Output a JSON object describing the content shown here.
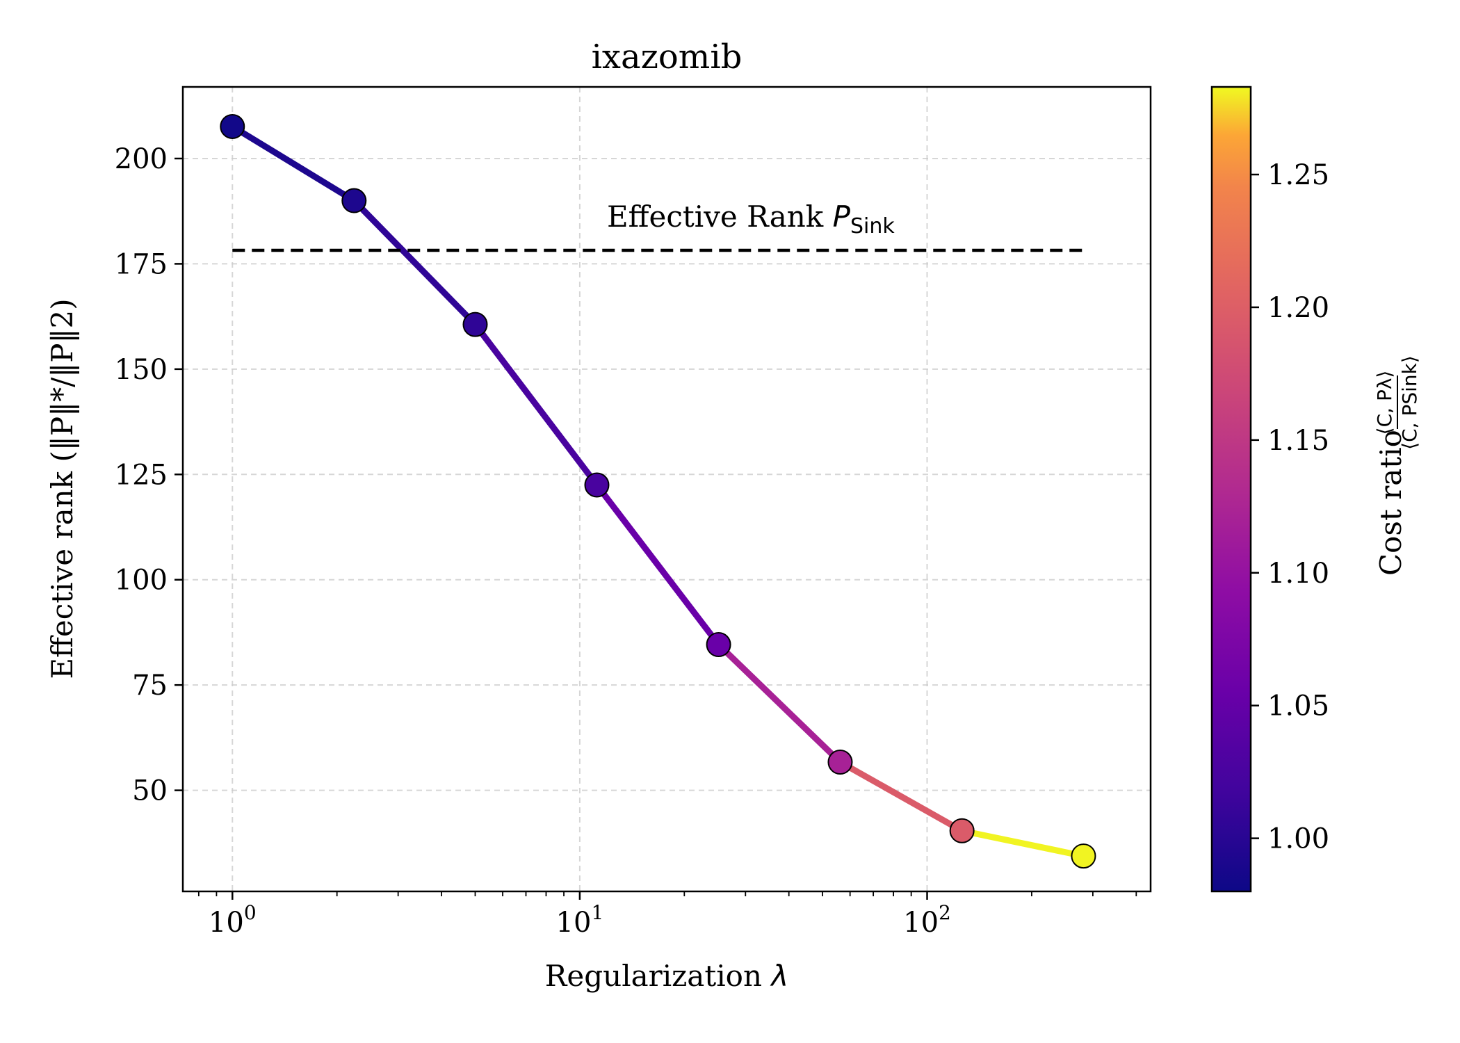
{
  "chart_data": {
    "type": "line",
    "title": "ixazomib",
    "xlabel": "Regularization",
    "xlabel_symbol": "λ",
    "ylabel": "Effective rank (‖P‖*/‖P‖2)",
    "x_scale": "log",
    "xlim": [
      0.72,
      440
    ],
    "ylim": [
      26,
      217
    ],
    "x_ticks": [
      {
        "value": 1,
        "base": "10",
        "exp": "0"
      },
      {
        "value": 10,
        "base": "10",
        "exp": "1"
      },
      {
        "value": 100,
        "base": "10",
        "exp": "2"
      }
    ],
    "y_ticks": [
      50,
      75,
      100,
      125,
      150,
      175,
      200
    ],
    "grid": true,
    "series": [
      {
        "x": [
          1.0,
          2.24,
          5.0,
          11.2,
          25.1,
          56.2,
          126,
          282
        ],
        "y": [
          207.6,
          190.0,
          160.6,
          122.5,
          84.6,
          56.7,
          40.4,
          34.4
        ],
        "cost_ratio": [
          0.984,
          0.992,
          1.005,
          1.025,
          1.055,
          1.12,
          1.195,
          1.282
        ]
      }
    ],
    "reference_line": {
      "y": 178.2,
      "x_range": [
        1.0,
        282
      ],
      "style": "dashed",
      "label": "Effective Rank",
      "label_symbol": "P",
      "label_subscript": "Sink"
    },
    "colorbar": {
      "colormap": "plasma",
      "range": [
        0.98,
        1.283
      ],
      "ticks": [
        "1.00",
        "1.05",
        "1.10",
        "1.15",
        "1.20",
        "1.25"
      ],
      "tick_values": [
        1.0,
        1.05,
        1.1,
        1.15,
        1.2,
        1.25
      ],
      "label": "Cost ratio",
      "label_fraction": {
        "numerator": "⟨C, Pλ⟩",
        "denominator": "⟨C, PSink⟩"
      }
    }
  }
}
